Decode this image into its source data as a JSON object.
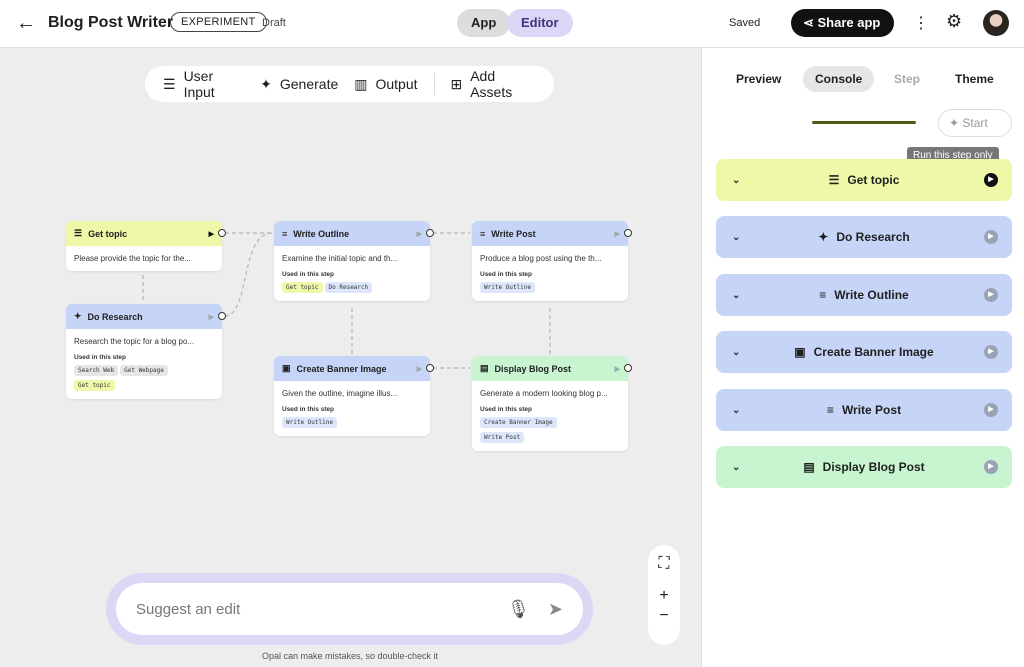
{
  "header": {
    "back_icon": "arrow-left-icon",
    "title": "Blog Post Writer",
    "badge": "EXPERIMENT",
    "status": "Draft",
    "tabs": [
      "App",
      "Editor"
    ],
    "saved": "Saved",
    "share": "Share app"
  },
  "toolbar": {
    "items": [
      "User Input",
      "Generate",
      "Output",
      "Add Assets"
    ]
  },
  "nodes": [
    {
      "title": "Get topic",
      "desc": "Please provide the topic for the...",
      "used": []
    },
    {
      "title": "Do Research",
      "desc": "Research the topic for a blog po...",
      "used_label": "Used in this step",
      "used": [
        "Search Web",
        "Get Webpage",
        "Get topic"
      ]
    },
    {
      "title": "Write Outline",
      "desc": "Examine the initial topic and th...",
      "used_label": "Used in this step",
      "used": [
        "Get topic",
        "Do Research"
      ]
    },
    {
      "title": "Write Post",
      "desc": "Produce a blog post using the th...",
      "used_label": "Used in this step",
      "used": [
        "Write Outline"
      ]
    },
    {
      "title": "Create Banner Image",
      "desc": "Given the outline, imagine illus...",
      "used_label": "Used in this step",
      "used": [
        "Write Outline"
      ]
    },
    {
      "title": "Display Blog Post",
      "desc": "Generate a modern looking blog p...",
      "used_label": "Used in this step",
      "used": [
        "Create Banner Image",
        "Write Post"
      ]
    }
  ],
  "suggest": {
    "placeholder": "Suggest an edit",
    "disclaimer": "Opal can make mistakes, so double-check it"
  },
  "panel": {
    "tabs": [
      "Preview",
      "Console",
      "Step",
      "Theme"
    ],
    "start": "Start",
    "tooltip": "Run this step only",
    "steps": [
      "Get topic",
      "Do Research",
      "Write Outline",
      "Create Banner Image",
      "Write Post",
      "Display Blog Post"
    ]
  },
  "colors": {
    "input": "#eef8a8",
    "generate": "#c6d5f7",
    "output": "#c8f5d0"
  }
}
